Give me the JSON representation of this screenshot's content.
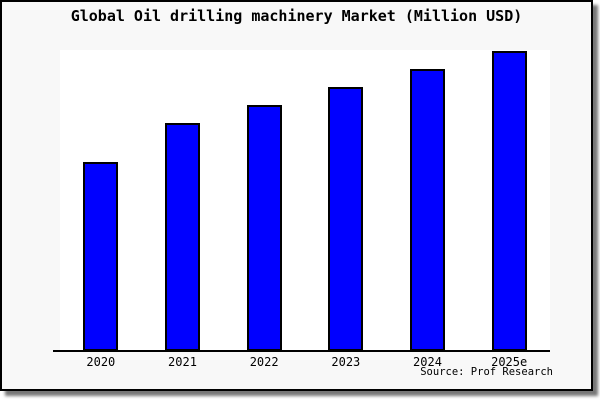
{
  "title": "Global Oil drilling machinery Market (Million USD)",
  "source": "Source: Prof Research",
  "colors": {
    "bar_fill": "#0000ff",
    "bar_border": "#000000",
    "figure_background": "#f8f8f8",
    "plot_background": "#ffffff",
    "axis": "#000000",
    "shadow": "#777777"
  },
  "chart_data": {
    "type": "bar",
    "title": "Global Oil drilling machinery Market (Million USD)",
    "categories": [
      "2020",
      "2021",
      "2022",
      "2023",
      "2024",
      "2025e"
    ],
    "values": [
      63,
      76,
      82,
      88,
      94,
      100
    ],
    "values_note": "relative bar heights as % of tallest bar; chart displays no numeric y-axis",
    "xlabel": "",
    "ylabel": "",
    "ylim": [
      0,
      100
    ],
    "grid": false,
    "legend": false,
    "annotation": "Source: Prof Research"
  }
}
